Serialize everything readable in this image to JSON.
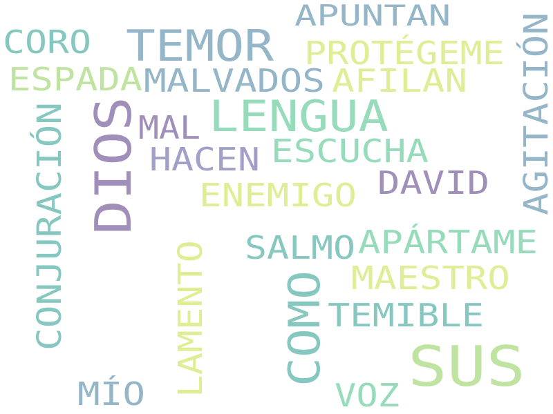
{
  "words": [
    {
      "id": "dios",
      "text": "DIOS",
      "color": "#a08fb8"
    },
    {
      "id": "sus",
      "text": "SUS",
      "color": "#bfe3a0"
    },
    {
      "id": "temor",
      "text": "TEMOR",
      "color": "#95b6c8"
    },
    {
      "id": "lengua",
      "text": "LENGUA",
      "color": "#96dbba"
    },
    {
      "id": "como",
      "text": "COMO",
      "color": "#86c7c0"
    },
    {
      "id": "apuntan",
      "text": "APUNTAN",
      "color": "#95b6c8"
    },
    {
      "id": "coro",
      "text": "CORO",
      "color": "#86c7c0"
    },
    {
      "id": "protegeme",
      "text": "PROTÉGEME",
      "color": "#dfed95"
    },
    {
      "id": "espada",
      "text": "ESPADA",
      "color": "#bfe3a0"
    },
    {
      "id": "malvados",
      "text": "MALVADOS",
      "color": "#95b6c8"
    },
    {
      "id": "afilan",
      "text": "AFILAN",
      "color": "#dfed95"
    },
    {
      "id": "agitacion",
      "text": "AGITACIÓN",
      "color": "#95b6c8"
    },
    {
      "id": "mal",
      "text": "MAL",
      "color": "#a08fb8"
    },
    {
      "id": "hacen",
      "text": "HACEN",
      "color": "#a0a0c8"
    },
    {
      "id": "escucha",
      "text": "ESCUCHA",
      "color": "#96dbba"
    },
    {
      "id": "conjuracion",
      "text": "CONJURACIÓN",
      "color": "#86c7c0"
    },
    {
      "id": "david",
      "text": "DAVID",
      "color": "#a08fb8"
    },
    {
      "id": "enemigo",
      "text": "ENEMIGO",
      "color": "#dfed95"
    },
    {
      "id": "salmo",
      "text": "SALMO",
      "color": "#86c7c0"
    },
    {
      "id": "apartame",
      "text": "APÁRTAME",
      "color": "#96dbba"
    },
    {
      "id": "lamento",
      "text": "LAMENTO",
      "color": "#dfed95"
    },
    {
      "id": "maestro",
      "text": "MAESTRO",
      "color": "#dfed95"
    },
    {
      "id": "temible",
      "text": "TEMIBLE",
      "color": "#86c7c0"
    },
    {
      "id": "mio",
      "text": "MÍO",
      "color": "#95b6c8"
    },
    {
      "id": "voz",
      "text": "VOZ",
      "color": "#96dbba"
    }
  ]
}
